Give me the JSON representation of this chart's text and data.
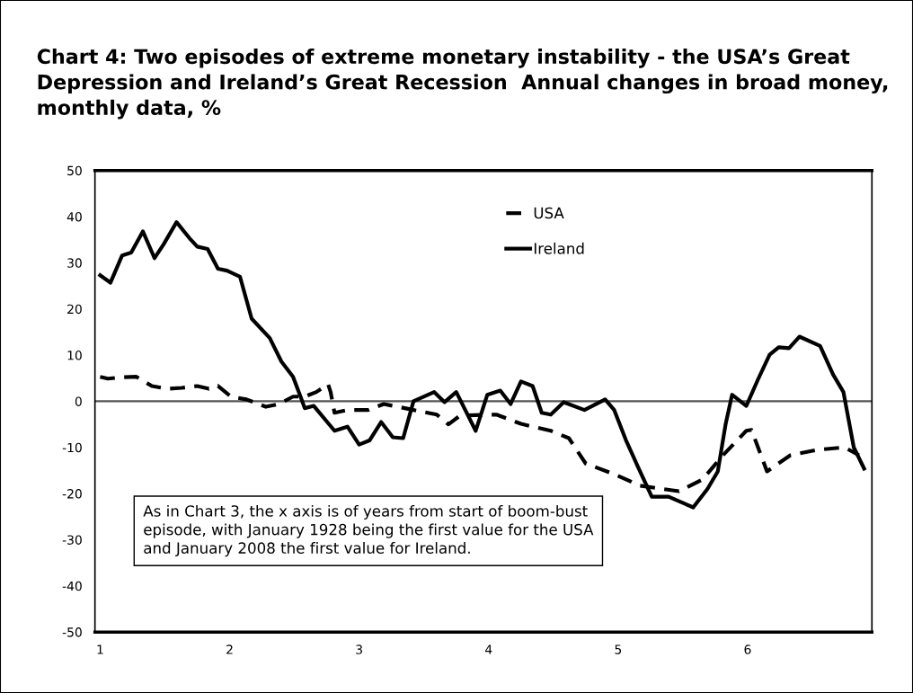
{
  "chart_data": {
    "type": "line",
    "title": "Chart 4: Two episodes of extreme monetary instability - the USA’s Great Depression and Ireland’s Great Recession  Annual changes in broad money, monthly data, %",
    "series": [
      {
        "name": "USA",
        "color": "#000000",
        "line_style": "dashed",
        "x": [
          1.0,
          1.06,
          1.17,
          1.28,
          1.4,
          1.52,
          1.63,
          1.75,
          1.84,
          1.91,
          2.01,
          2.13,
          2.28,
          2.38,
          2.49,
          2.58,
          2.67,
          2.76,
          2.78,
          2.81,
          2.91,
          3.07,
          3.19,
          3.37,
          3.6,
          3.69,
          3.78,
          4.06,
          4.25,
          4.48,
          4.62,
          4.75,
          4.97,
          5.17,
          5.47,
          5.65,
          5.81,
          5.99,
          6.03,
          6.15,
          6.33,
          6.54,
          6.75,
          6.86
        ],
        "values": [
          5.3,
          4.9,
          5.2,
          5.3,
          3.3,
          2.7,
          2.9,
          3.3,
          2.7,
          3.3,
          1,
          0.4,
          -1.2,
          -0.6,
          1,
          1,
          2,
          3.7,
          2,
          -2.5,
          -1.9,
          -1.9,
          -0.6,
          -1.6,
          -2.9,
          -5,
          -3.1,
          -2.9,
          -4.9,
          -6.4,
          -8,
          -13.5,
          -15.8,
          -18.3,
          -19.5,
          -17,
          -11.7,
          -6.4,
          -6.2,
          -15.2,
          -11.7,
          -10.5,
          -10,
          -11.7
        ]
      },
      {
        "name": "Ireland",
        "color": "#000000",
        "line_style": "solid",
        "x": [
          1.0,
          1.08,
          1.17,
          1.24,
          1.33,
          1.42,
          1.49,
          1.59,
          1.7,
          1.75,
          1.83,
          1.91,
          1.98,
          2.08,
          2.17,
          2.31,
          2.4,
          2.49,
          2.55,
          2.58,
          2.65,
          2.81,
          2.91,
          3.0,
          3.08,
          3.17,
          3.26,
          3.34,
          3.42,
          3.58,
          3.66,
          3.75,
          3.9,
          3.99,
          4.09,
          4.17,
          4.25,
          4.34,
          4.41,
          4.48,
          4.58,
          4.74,
          4.9,
          4.97,
          5.06,
          5.15,
          5.26,
          5.39,
          5.58,
          5.69,
          5.77,
          5.83,
          5.88,
          5.99,
          6.08,
          6.17,
          6.24,
          6.32,
          6.4,
          6.56,
          6.66,
          6.74,
          6.82,
          6.9
        ],
        "values": [
          27.3,
          25.7,
          31.6,
          32.2,
          36.8,
          31,
          34,
          38.8,
          35,
          33.5,
          33,
          28.7,
          28.3,
          27,
          17.9,
          13.7,
          8.6,
          5.3,
          0.8,
          -1.5,
          -1,
          -6.4,
          -5.5,
          -9.4,
          -8.5,
          -4.5,
          -7.8,
          -8,
          0,
          2,
          -0.2,
          2,
          -6.4,
          1.4,
          2.3,
          -0.6,
          4.3,
          3.3,
          -2.5,
          -2.9,
          -0.2,
          -1.9,
          0.4,
          -1.9,
          -8.4,
          -14,
          -20.7,
          -20.7,
          -23,
          -19,
          -15.2,
          -5,
          1.4,
          -1,
          4.7,
          10.1,
          11.7,
          11.5,
          14,
          12,
          5.8,
          2,
          -10,
          -14.6
        ]
      }
    ],
    "xlim": [
      0.96,
      6.96
    ],
    "xticks": [
      1,
      2,
      3,
      4,
      5,
      6
    ],
    "ylim": [
      -50,
      50
    ],
    "yticks": [
      -50,
      -40,
      -30,
      -20,
      -10,
      0,
      10,
      20,
      30,
      40,
      50
    ],
    "ref_lines": [
      {
        "axis": "y",
        "value": 0,
        "color": "#555555"
      }
    ],
    "annotations": [
      "As in Chart 3, the x axis is of years from start of boom-bust episode, with January 1928 being the first value for the USA and January 2008 the first value for Ireland."
    ],
    "legend": "top",
    "grid": false,
    "marker": "none"
  }
}
